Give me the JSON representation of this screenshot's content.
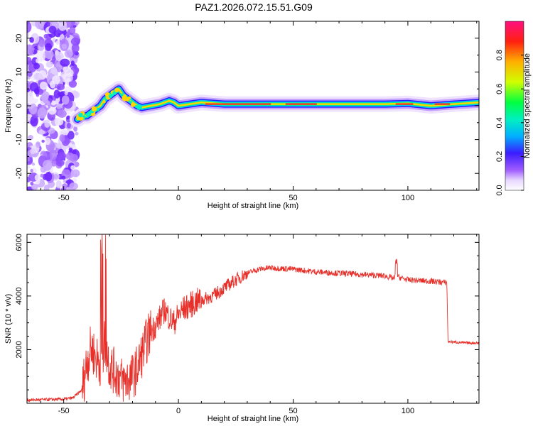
{
  "title": "PAZ1.2026.072.15.51.G09",
  "colors": {
    "snr_line": "#e8302a",
    "frame": "#000000",
    "band_core": "#e8402a"
  },
  "chart_data": [
    {
      "type": "heatmap",
      "xlabel": "Height of straight line (km)",
      "ylabel": "Frequency (Hz)",
      "xlim": [
        -66,
        131
      ],
      "ylim": [
        -25,
        25
      ],
      "xticks": [
        -50,
        0,
        50,
        100
      ],
      "yticks": [
        20,
        10,
        0,
        -10,
        -20
      ],
      "colorbar": {
        "label": "Normalized spectral amplitude",
        "range": [
          0,
          1
        ],
        "ticks": [
          0.0,
          0.2,
          0.4,
          0.6,
          0.8
        ]
      },
      "ridge": {
        "x": [
          -44,
          -42,
          -40,
          -38,
          -36,
          -34,
          -32,
          -30,
          -28,
          -26,
          -24,
          -22,
          -20,
          -18,
          -16,
          -12,
          -8,
          -4,
          -2,
          0,
          5,
          10,
          20,
          40,
          60,
          80,
          90,
          100,
          110,
          120,
          131
        ],
        "freq": [
          -4,
          -3,
          -3,
          -2,
          -1,
          0,
          2,
          3,
          4,
          5,
          3,
          2,
          1,
          0,
          -0.5,
          0,
          0.5,
          1.5,
          1,
          0,
          0.5,
          1,
          0.5,
          0.5,
          0.5,
          0.5,
          0.5,
          0.7,
          0,
          0.5,
          1
        ]
      },
      "noise_region_x": [
        -66,
        -44
      ]
    },
    {
      "type": "line",
      "xlabel": "Height of straight line (km)",
      "ylabel": "SNR (10 * v/v)",
      "xlim": [
        -66,
        131
      ],
      "ylim": [
        0,
        6300
      ],
      "xticks": [
        -50,
        0,
        50,
        100
      ],
      "yticks": [
        6000,
        4000,
        2000
      ],
      "series": [
        {
          "name": "SNR",
          "x": [
            -66,
            -50,
            -46,
            -42,
            -40,
            -38,
            -36,
            -34,
            -32,
            -30,
            -28,
            -26,
            -24,
            -22,
            -20,
            -18,
            -16,
            -14,
            -12,
            -10,
            -8,
            -6,
            -4,
            -2,
            0,
            2,
            4,
            6,
            8,
            10,
            15,
            20,
            25,
            30,
            35,
            40,
            50,
            60,
            70,
            80,
            90,
            94,
            95,
            96,
            100,
            110,
            117,
            117.5,
            125,
            131
          ],
          "y": [
            120,
            150,
            200,
            500,
            1500,
            2100,
            1700,
            1500,
            2300,
            1400,
            1200,
            1000,
            800,
            900,
            1000,
            1300,
            1800,
            2300,
            2700,
            2900,
            3200,
            3500,
            3200,
            3000,
            3300,
            3500,
            3600,
            3700,
            3800,
            3850,
            4000,
            4300,
            4600,
            4850,
            5000,
            5050,
            5000,
            4900,
            4850,
            4800,
            4750,
            4650,
            4800,
            4700,
            4600,
            4550,
            4500,
            2300,
            2250,
            2250
          ]
        }
      ]
    }
  ]
}
